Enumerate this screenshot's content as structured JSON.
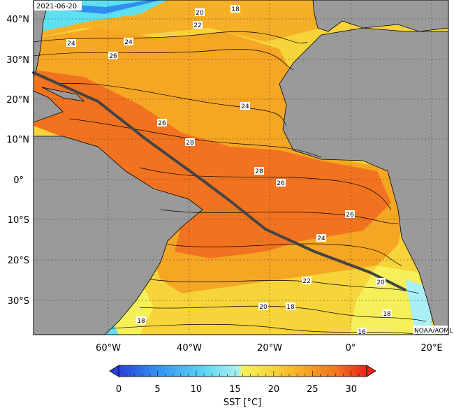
{
  "map": {
    "date_label": "2021-06-20",
    "credit": "NOAA/AOML",
    "lat_labels": [
      "40°N",
      "30°N",
      "20°N",
      "10°N",
      "0°",
      "10°S",
      "20°S",
      "30°S"
    ],
    "lon_labels": [
      "60°W",
      "40°W",
      "20°W",
      "0°",
      "20°E"
    ],
    "contour_labels": [
      "20",
      "18",
      "22",
      "24",
      "24",
      "26",
      "26",
      "24",
      "28",
      "28",
      "26",
      "26",
      "24",
      "22",
      "20",
      "20",
      "18",
      "18",
      "18",
      "16"
    ],
    "colorbar": {
      "ticks": [
        "0",
        "5",
        "10",
        "15",
        "20",
        "25",
        "30"
      ],
      "title": "SST [°C]",
      "range": [
        0,
        32
      ]
    },
    "colors": {
      "land": "#9a9a9a",
      "warm": "#f2731f",
      "mid": "#f5a623",
      "cool": "#f7d43a",
      "cold": "#f5f05a",
      "cyan": "#5fe0f0",
      "track": "#444444"
    }
  }
}
